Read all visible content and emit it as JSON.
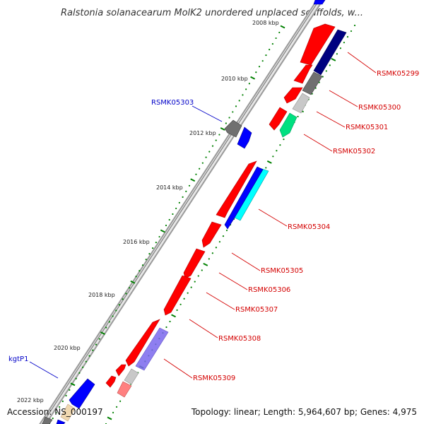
{
  "title": "Ralstonia solanacearum MolK2 unordered unplaced scaffolds, w...",
  "footer": {
    "accession": "Accession: NS_000197",
    "summary": "Topology: linear; Length: 5,964,607 bp; Genes: 4,975"
  },
  "kbp_labels": [
    "2008 kbp",
    "2010 kbp",
    "2012 kbp",
    "2014 kbp",
    "2016 kbp",
    "2018 kbp",
    "2020 kbp",
    "2022 kbp"
  ],
  "gene_labels": [
    {
      "text": "RSMK05299",
      "color": "#d40000"
    },
    {
      "text": "RSMK05300",
      "color": "#d40000"
    },
    {
      "text": "RSMK05301",
      "color": "#d40000"
    },
    {
      "text": "RSMK05302",
      "color": "#d40000"
    },
    {
      "text": "RSMK05304",
      "color": "#d40000"
    },
    {
      "text": "RSMK05305",
      "color": "#d40000"
    },
    {
      "text": "RSMK05306",
      "color": "#d40000"
    },
    {
      "text": "RSMK05307",
      "color": "#d40000"
    },
    {
      "text": "RSMK05308",
      "color": "#d40000"
    },
    {
      "text": "RSMK05309",
      "color": "#d40000"
    },
    {
      "text": "RSMK05303",
      "color": "#0000c8"
    },
    {
      "text": "kgtP1",
      "color": "#0000c8"
    }
  ],
  "colors": {
    "gene_red": "#ff0000",
    "gene_blue": "#0000ff",
    "navy": "#000080",
    "gray": "#707070",
    "light_gray": "#c8c8c8",
    "green": "#00e080",
    "cyan": "#00ffff",
    "lavender": "#7b68ee",
    "pink": "#ff8080",
    "tick_green": "#008000"
  }
}
